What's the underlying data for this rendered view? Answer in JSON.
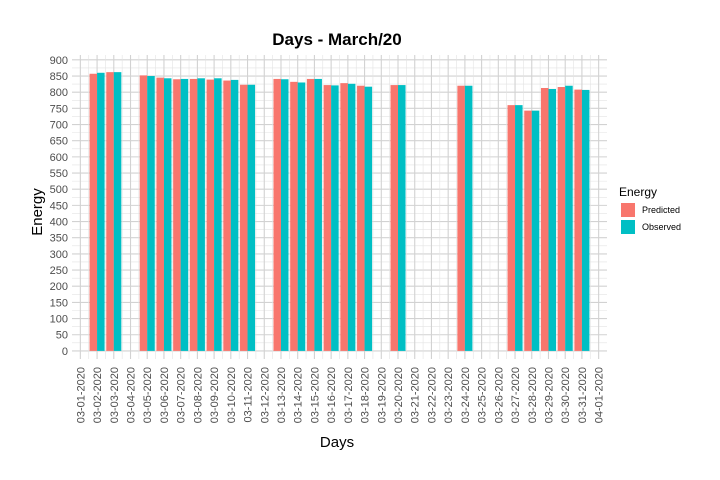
{
  "chart_data": {
    "type": "bar",
    "title": "Days - March/20",
    "xlabel": "Days",
    "ylabel": "Energy",
    "ylim": [
      -25,
      915
    ],
    "yticks": [
      0,
      50,
      100,
      150,
      200,
      250,
      300,
      350,
      400,
      450,
      500,
      550,
      600,
      650,
      700,
      750,
      800,
      850,
      900
    ],
    "grid": true,
    "legend": {
      "title": "Energy",
      "position": "right"
    },
    "categories": [
      "03-01-2020",
      "03-02-2020",
      "03-03-2020",
      "03-04-2020",
      "03-05-2020",
      "03-06-2020",
      "03-07-2020",
      "03-08-2020",
      "03-09-2020",
      "03-10-2020",
      "03-11-2020",
      "03-12-2020",
      "03-13-2020",
      "03-14-2020",
      "03-15-2020",
      "03-16-2020",
      "03-17-2020",
      "03-18-2020",
      "03-19-2020",
      "03-20-2020",
      "03-21-2020",
      "03-22-2020",
      "03-23-2020",
      "03-24-2020",
      "03-25-2020",
      "03-26-2020",
      "03-27-2020",
      "03-28-2020",
      "03-29-2020",
      "03-30-2020",
      "03-31-2020",
      "04-01-2020"
    ],
    "series": [
      {
        "name": "Predicted",
        "color": "#F8766D",
        "values": [
          null,
          857,
          862,
          null,
          852,
          845,
          840,
          841,
          839,
          836,
          823,
          null,
          841,
          832,
          841,
          822,
          828,
          820,
          null,
          822,
          null,
          null,
          null,
          820,
          null,
          null,
          760,
          743,
          813,
          816,
          808,
          null
        ]
      },
      {
        "name": "Observed",
        "color": "#00BFC4",
        "values": [
          null,
          860,
          862,
          null,
          850,
          843,
          841,
          843,
          843,
          838,
          823,
          null,
          840,
          830,
          841,
          821,
          826,
          817,
          null,
          822,
          null,
          null,
          null,
          820,
          null,
          null,
          760,
          743,
          810,
          820,
          807,
          null
        ]
      }
    ]
  }
}
